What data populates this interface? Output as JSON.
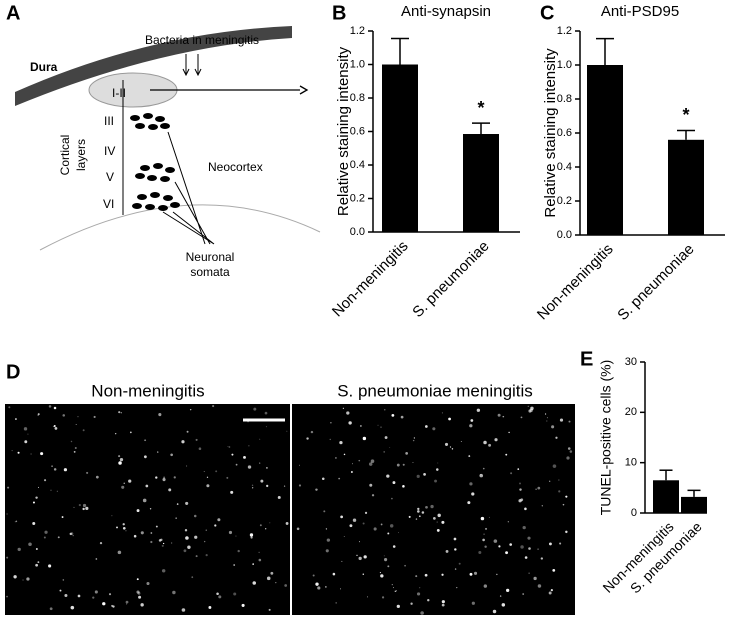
{
  "panel_labels": [
    "A",
    "B",
    "C",
    "D",
    "E"
  ],
  "diagram": {
    "dura": "Dura",
    "bacteria": "Bacteria in meningitis",
    "layers": [
      "I-II",
      "III",
      "IV",
      "V",
      "VI"
    ],
    "cortical_layers": [
      "Cortical",
      "layers"
    ],
    "neocortex": "Neocortex",
    "neuronal_somata": [
      "Neuronal",
      "somata"
    ]
  },
  "micrographs": [
    "Non-meningitis",
    "S. pneumoniae meningitis"
  ],
  "chart_data": [
    {
      "type": "bar",
      "title": "Anti-synapsin",
      "y_label": "Relative staining intensity",
      "categories": [
        "Non-meningitis",
        "S. pneumoniae"
      ],
      "values": [
        1.0,
        0.585
      ],
      "errors": [
        0.155,
        0.065
      ],
      "color": "#000000",
      "annotation": "*",
      "ylim": [
        0,
        1.2
      ],
      "yticks": [
        {
          "value": 0,
          "label": "0.0"
        },
        0.2,
        0.4,
        0.6,
        0.8,
        {
          "value": 1,
          "label": "1.0"
        },
        1.2
      ]
    },
    {
      "type": "bar",
      "title": "Anti-PSD95",
      "y_label": "Relative staining intensity",
      "categories": [
        "Non-meningitis",
        "S. pneumoniae"
      ],
      "values": [
        1.0,
        0.56
      ],
      "errors": [
        0.155,
        0.055
      ],
      "color": "#000000",
      "annotation": "*",
      "ylim": [
        0,
        1.2
      ],
      "yticks": [
        {
          "value": 0,
          "label": "0.0"
        },
        0.2,
        0.4,
        0.6,
        0.8,
        {
          "value": 1,
          "label": "1.0"
        },
        1.2
      ]
    },
    {
      "type": "bar",
      "y_label": "TUNEL-positive cells (%)",
      "categories": [
        "Non-meningitis",
        "S. pneumoniae"
      ],
      "values": [
        6.5,
        3.2
      ],
      "errors": [
        2.0,
        1.3
      ],
      "color": "#000000",
      "ylim": [
        0,
        30
      ],
      "yticks": [
        0,
        10,
        20,
        30
      ]
    }
  ]
}
